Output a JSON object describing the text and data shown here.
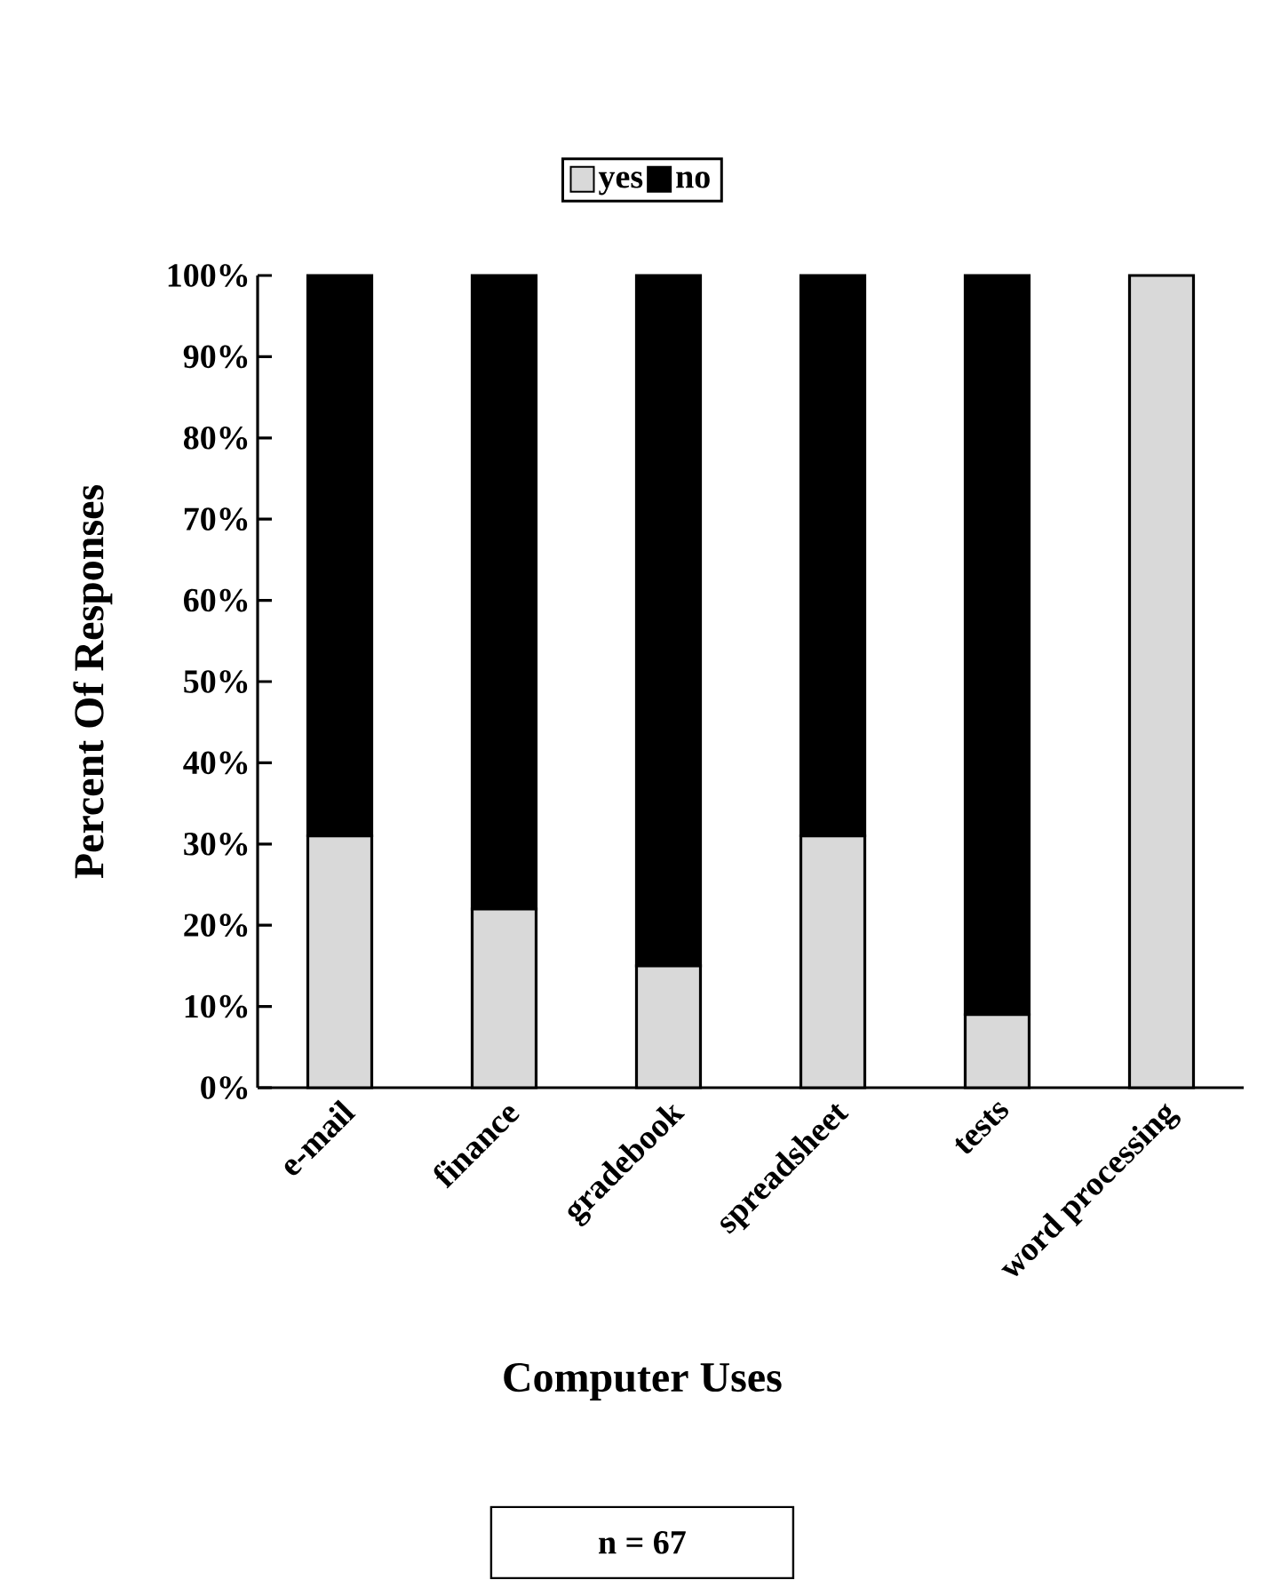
{
  "chart_data": {
    "type": "bar",
    "stacked": true,
    "xlabel": "Computer Uses",
    "ylabel": "Percent Of Responses",
    "categories": [
      "e-mail",
      "finance",
      "gradebook",
      "spreadsheet",
      "tests",
      "word processing"
    ],
    "series": [
      {
        "name": "yes",
        "color": "#d9d9d9",
        "values": [
          31,
          22,
          15,
          31,
          9,
          100
        ]
      },
      {
        "name": "no",
        "color": "#000000",
        "values": [
          69,
          78,
          85,
          69,
          91,
          0
        ]
      }
    ],
    "ylim": [
      0,
      100
    ],
    "yticks": [
      {
        "value": 0,
        "label": "0%"
      },
      {
        "value": 10,
        "label": "10%"
      },
      {
        "value": 20,
        "label": "20%"
      },
      {
        "value": 30,
        "label": "30%"
      },
      {
        "value": 40,
        "label": "40%"
      },
      {
        "value": 50,
        "label": "50%"
      },
      {
        "value": 60,
        "label": "60%"
      },
      {
        "value": 70,
        "label": "70%"
      },
      {
        "value": 80,
        "label": "80%"
      },
      {
        "value": 90,
        "label": "90%"
      },
      {
        "value": 100,
        "label": "100%"
      }
    ],
    "legend": "top",
    "grid": false,
    "annotations": [
      "n = 67"
    ]
  }
}
